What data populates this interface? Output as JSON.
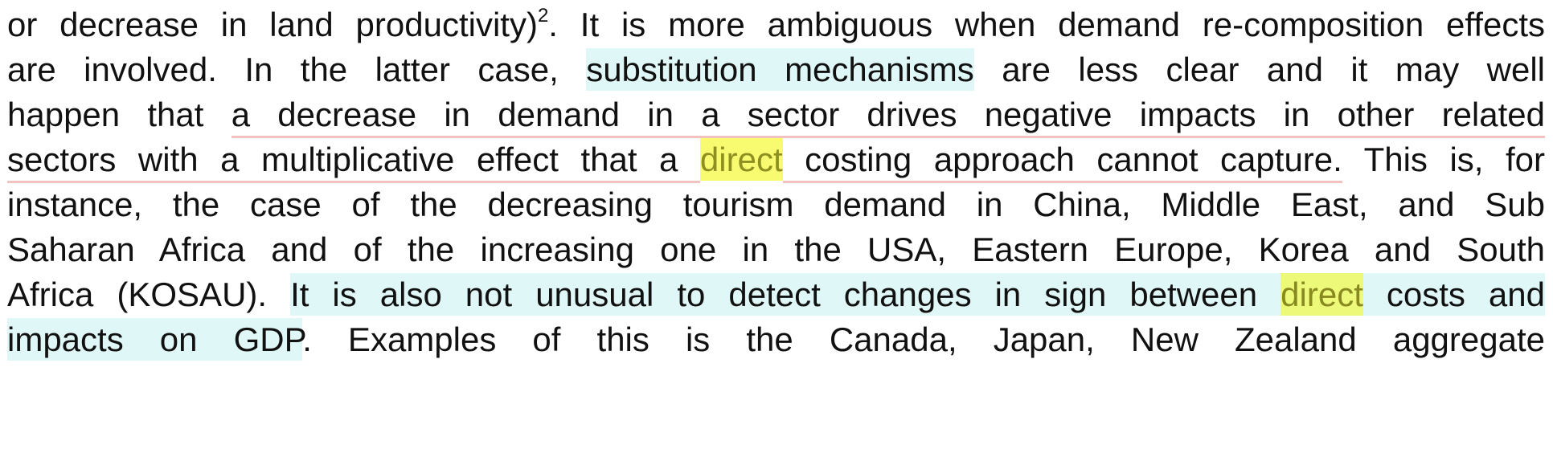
{
  "document": {
    "lines": [
      {
        "segments": [
          {
            "text": "or decrease in land productivity)"
          },
          {
            "text": "2",
            "style": "sup"
          },
          {
            "text": ". It is more ambiguous when demand re-composition effects"
          }
        ]
      },
      {
        "segments": [
          {
            "text": "are involved. In the latter case, "
          },
          {
            "text": "substitution mechanisms",
            "style": "cyan"
          },
          {
            "text": " are less clear and it may well"
          }
        ]
      },
      {
        "segments": [
          {
            "text": "happen that "
          },
          {
            "text": "a decrease in demand in a sector drives negative impacts in other related",
            "style": "underline"
          }
        ]
      },
      {
        "segments": [
          {
            "text": "sectors with a multiplicative effect that a ",
            "style": "underline"
          },
          {
            "text": "direct",
            "style": "yellow"
          },
          {
            "text": " costing approach cannot capture.",
            "style": "underline"
          },
          {
            "text": " This is, for"
          }
        ]
      },
      {
        "segments": [
          {
            "text": "instance, the case of the decreasing tourism demand in China, Middle East, and Sub"
          }
        ]
      },
      {
        "segments": [
          {
            "text": "Saharan Africa and of the increasing one in the USA, Eastern Europe, Korea and South"
          }
        ]
      },
      {
        "segments": [
          {
            "text": "Africa (KOSAU). "
          },
          {
            "text": "It is also not unusual to detect changes in sign between ",
            "style": "cyan"
          },
          {
            "text": "direct",
            "style": "yellow-on-cyan"
          },
          {
            "text": " costs and",
            "style": "cyan"
          }
        ]
      },
      {
        "segments": [
          {
            "text": "impacts on GDP",
            "style": "cyan"
          },
          {
            "text": ". Examples of this is the Canada, Japan, New Zealand aggregate"
          }
        ]
      }
    ]
  },
  "colors": {
    "text": "#111111",
    "cyan_highlight": "#dff7f6",
    "yellow_highlight": "#f8fb6f",
    "yellow_text": "#8e8f21",
    "underline_red": "#f3c1c0"
  }
}
